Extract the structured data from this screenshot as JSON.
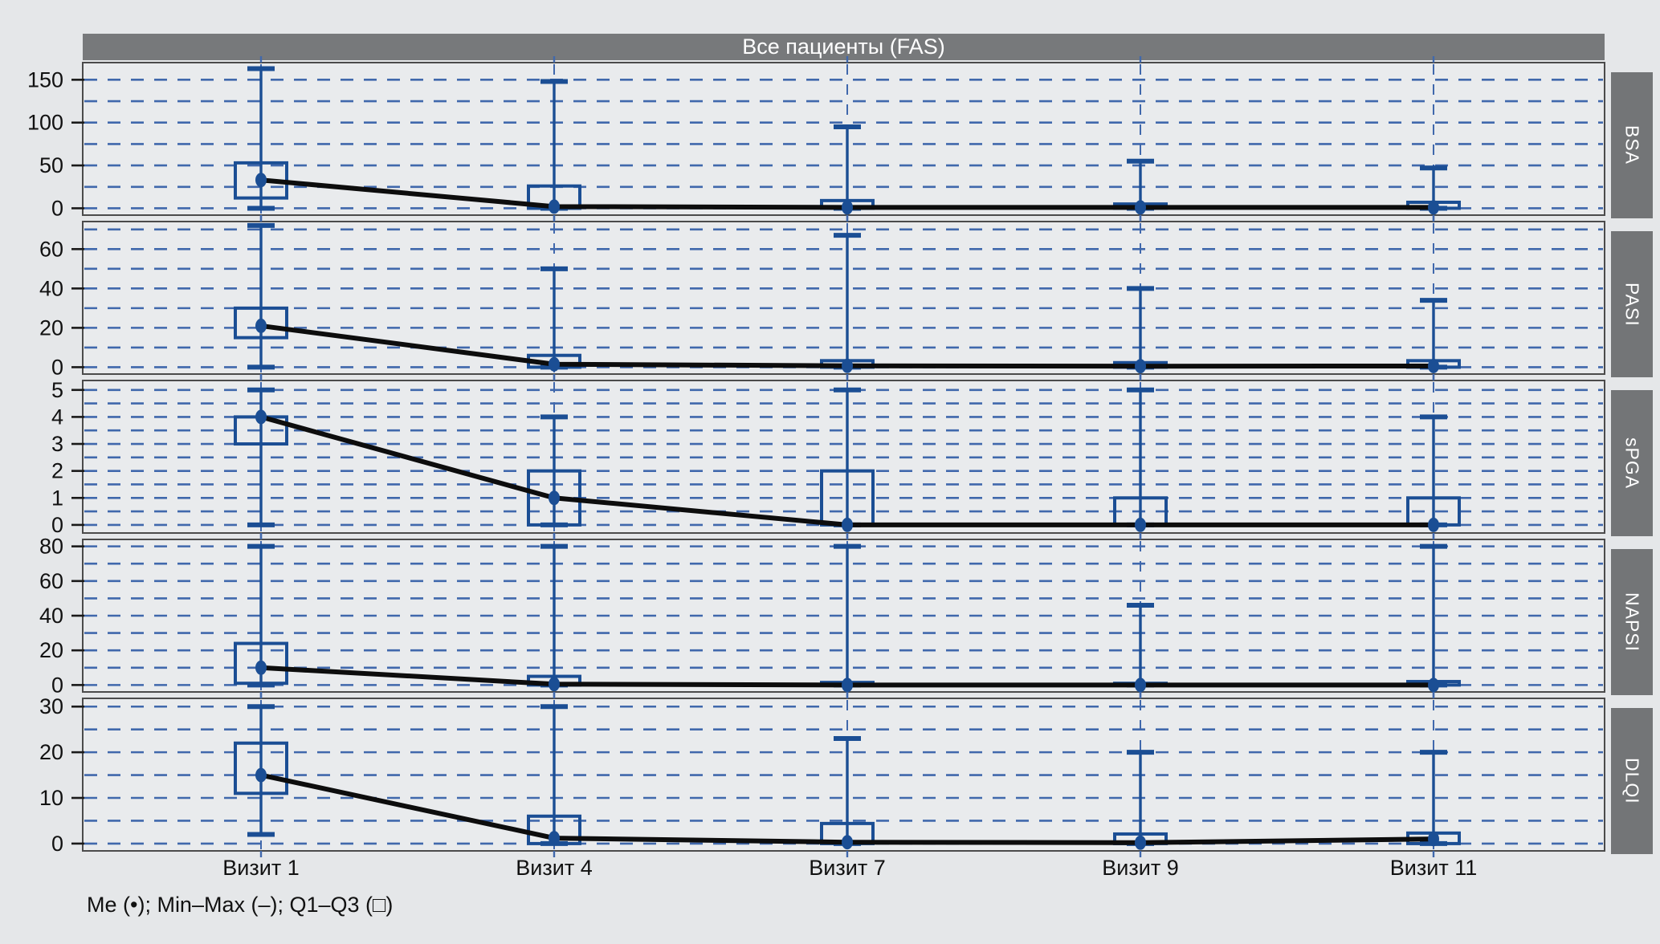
{
  "chart_data": {
    "type": "boxplot",
    "title": "Все пациенты (FAS)",
    "legend": "Me (•); Min–Max (–); Q1–Q3 (□)",
    "x_categories": [
      "Визит 1",
      "Визит 4",
      "Визит 7",
      "Визит 9",
      "Визит 11"
    ],
    "stat_order": [
      "min",
      "q1",
      "median",
      "q3",
      "max"
    ],
    "grid": true,
    "legend_position": "bottom-left",
    "strip_position": "right",
    "panels": [
      {
        "label": "BSA",
        "ylim": [
          -8,
          170
        ],
        "ticks": [
          0,
          50,
          100,
          150
        ],
        "grid_step": 25,
        "grid_max": 150,
        "stats": [
          [
            0,
            12,
            33,
            53,
            163
          ],
          [
            0,
            0,
            2,
            26,
            148
          ],
          [
            0,
            0,
            1,
            9,
            95
          ],
          [
            0,
            0,
            1,
            5,
            55
          ],
          [
            0,
            0,
            1,
            7,
            47
          ]
        ]
      },
      {
        "label": "PASI",
        "ylim": [
          -3.5,
          74
        ],
        "ticks": [
          0,
          20,
          40,
          60
        ],
        "grid_step": 10,
        "grid_max": 70,
        "stats": [
          [
            0,
            15,
            21,
            30,
            72
          ],
          [
            0,
            0,
            1.5,
            6,
            50
          ],
          [
            0,
            0,
            0.7,
            3.3,
            67
          ],
          [
            0,
            0,
            0.5,
            2.3,
            40
          ],
          [
            0,
            0,
            0.6,
            3.3,
            34
          ]
        ]
      },
      {
        "label": "sPGA",
        "ylim": [
          -0.3,
          5.35
        ],
        "ticks": [
          0,
          1,
          2,
          3,
          4,
          5
        ],
        "grid_step": 0.5,
        "grid_max": 5,
        "stats": [
          [
            0,
            3,
            4,
            4,
            5
          ],
          [
            0,
            0,
            1,
            2,
            4
          ],
          [
            0,
            0,
            0,
            2,
            5
          ],
          [
            0,
            0,
            0,
            1,
            5
          ],
          [
            0,
            0,
            0,
            1,
            4
          ]
        ]
      },
      {
        "label": "NAPSI",
        "ylim": [
          -4,
          84
        ],
        "ticks": [
          0,
          20,
          40,
          60,
          80
        ],
        "grid_step": 10,
        "grid_max": 80,
        "stats": [
          [
            0,
            1,
            10,
            24,
            80
          ],
          [
            0,
            0,
            0.5,
            5,
            80
          ],
          [
            0,
            0,
            0,
            1.5,
            80
          ],
          [
            0,
            0,
            0,
            1,
            46
          ],
          [
            0,
            0,
            0,
            2,
            80
          ]
        ]
      },
      {
        "label": "DLQI",
        "ylim": [
          -1.6,
          31.8
        ],
        "ticks": [
          0,
          10,
          20,
          30
        ],
        "grid_step": 5,
        "grid_max": 30,
        "stats": [
          [
            2,
            11,
            15,
            22,
            30
          ],
          [
            0,
            0,
            1.2,
            6,
            30
          ],
          [
            0,
            0,
            0.3,
            4.4,
            23
          ],
          [
            0,
            0,
            0.2,
            2.1,
            20
          ],
          [
            0,
            0,
            1,
            2.3,
            20
          ]
        ]
      }
    ],
    "colors": {
      "box": "#1b4e94",
      "grid": "#4068ac",
      "median_line": "#0d0d0d",
      "panel_bg": "#e9ebed",
      "header_bg": "#77797b",
      "strip_bg": "#737577",
      "page_bg": "#e5e7e9",
      "frame": "#4b4b4b",
      "tick": "#1a1a1a"
    }
  }
}
